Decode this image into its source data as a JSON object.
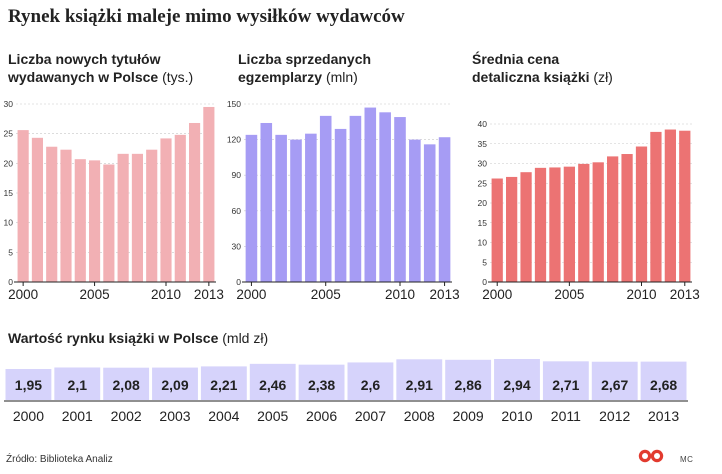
{
  "headline": "Rynek książki maleje mimo wysiłków wydawców",
  "panels": [
    {
      "title_line1": "Liczba nowych tytułów",
      "title_line2": "wydawanych w Polsce",
      "unit": "(tys.)",
      "color": "#f2b0b4"
    },
    {
      "title_line1": "Liczba sprzedanych",
      "title_line2": "egzemplarzy",
      "unit": "(mln)",
      "color": "#a69cf4"
    },
    {
      "title_line1": "Średnia cena",
      "title_line2": "detaliczna książki",
      "unit": "(zł)",
      "color": "#ec7373"
    }
  ],
  "value_section": {
    "title": "Wartość rynku książki w Polsce",
    "unit": "(mld zł)",
    "color": "#d6d3fb"
  },
  "source": "Źródło: Biblioteka Analiz",
  "credit": "MC",
  "chart_data": [
    {
      "type": "bar",
      "title": "Liczba nowych tytułów wydawanych w Polsce (tys.)",
      "x": [
        2000,
        2001,
        2002,
        2003,
        2004,
        2005,
        2006,
        2007,
        2008,
        2009,
        2010,
        2011,
        2012,
        2013
      ],
      "x_tick_labels": [
        "2000",
        "2005",
        "2010",
        "2013"
      ],
      "values": [
        25.6,
        24.3,
        22.8,
        22.3,
        20.7,
        20.5,
        19.8,
        21.6,
        21.6,
        22.3,
        24.2,
        24.8,
        26.8,
        29.5
      ],
      "ylim": [
        0,
        30
      ],
      "yticks": [
        0,
        5,
        10,
        15,
        20,
        25,
        30
      ],
      "grid": true
    },
    {
      "type": "bar",
      "title": "Liczba sprzedanych egzemplarzy (mln)",
      "x": [
        2000,
        2001,
        2002,
        2003,
        2004,
        2005,
        2006,
        2007,
        2008,
        2009,
        2010,
        2011,
        2012,
        2013
      ],
      "x_tick_labels": [
        "2000",
        "2005",
        "2010",
        "2013"
      ],
      "values": [
        124,
        134,
        124,
        120,
        125,
        140,
        129,
        140,
        147,
        143,
        139,
        120,
        116,
        122
      ],
      "ylim": [
        0,
        150
      ],
      "yticks": [
        0,
        30,
        60,
        90,
        120,
        150
      ],
      "grid": true
    },
    {
      "type": "bar",
      "title": "Średnia cena detaliczna książki (zł)",
      "x": [
        2000,
        2001,
        2002,
        2003,
        2004,
        2005,
        2006,
        2007,
        2008,
        2009,
        2010,
        2011,
        2012,
        2013
      ],
      "x_tick_labels": [
        "2000",
        "2005",
        "2010",
        "2013"
      ],
      "values": [
        26.2,
        26.6,
        27.8,
        28.9,
        29.0,
        29.2,
        29.9,
        30.3,
        31.8,
        32.4,
        34.3,
        38.0,
        38.6,
        38.3
      ],
      "ylim": [
        0,
        40
      ],
      "yticks": [
        0,
        5,
        10,
        15,
        20,
        25,
        30,
        35,
        40
      ],
      "grid": true
    },
    {
      "type": "bar",
      "title": "Wartość rynku książki w Polsce (mld zł)",
      "categories": [
        "2000",
        "2001",
        "2002",
        "2003",
        "2004",
        "2005",
        "2006",
        "2007",
        "2008",
        "2009",
        "2010",
        "2011",
        "2012",
        "2013"
      ],
      "values": [
        1.95,
        2.1,
        2.08,
        2.09,
        2.21,
        2.46,
        2.38,
        2.6,
        2.91,
        2.86,
        2.94,
        2.71,
        2.67,
        2.68
      ],
      "labels": [
        "1,95",
        "2,1",
        "2,08",
        "2,09",
        "2,21",
        "2,46",
        "2,38",
        "2,6",
        "2,91",
        "2,86",
        "2,94",
        "2,71",
        "2,67",
        "2,68"
      ],
      "grid": false
    }
  ]
}
